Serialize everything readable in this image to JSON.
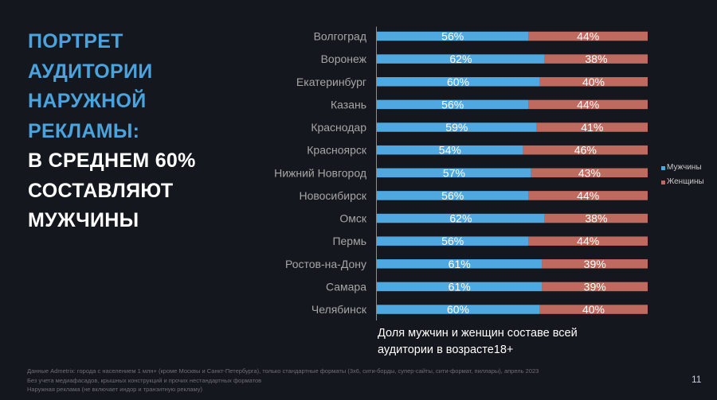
{
  "title": {
    "lines_accent": [
      "ПОРТРЕТ",
      "АУДИТОРИИ",
      "НАРУЖНОЙ",
      "РЕКЛАМЫ:"
    ],
    "lines_main": [
      "В СРЕДНЕМ 60%",
      "СОСТАВЛЯЮТ",
      "МУЖЧИНЫ"
    ]
  },
  "colors": {
    "background": "#15171e",
    "accent": "#4aa3dc",
    "men": "#4fa8e0",
    "women": "#bf6a5e"
  },
  "chart_data": {
    "type": "bar",
    "orientation": "horizontal",
    "stacked": true,
    "percent_stacked": true,
    "categories": [
      "Волгоград",
      "Воронеж",
      "Екатеринбург",
      "Казань",
      "Краснодар",
      "Красноярск",
      "Нижний Новгород",
      "Новосибирск",
      "Омск",
      "Пермь",
      "Ростов-на-Дону",
      "Самара",
      "Челябинск"
    ],
    "series": [
      {
        "name": "Мужчины",
        "color": "#4fa8e0",
        "values": [
          56,
          62,
          60,
          56,
          59,
          54,
          57,
          56,
          62,
          56,
          61,
          61,
          60
        ]
      },
      {
        "name": "Женщины",
        "color": "#bf6a5e",
        "values": [
          44,
          38,
          40,
          44,
          41,
          46,
          43,
          44,
          38,
          44,
          39,
          39,
          40
        ]
      }
    ],
    "data_label_suffix": "%",
    "xlim": [
      0,
      100
    ],
    "grid": false,
    "legend_position": "right",
    "title": "",
    "xlabel": "Доля мужчин и женщин составе всей аудитории в возрасте18+",
    "ylabel": ""
  },
  "caption": [
    "Доля мужчин и женщин составе всей",
    "аудитории в возрасте18+"
  ],
  "footnotes": [
    "Данные Admetrix: города с населением 1 млн+ (кроме Москвы и Санкт-Петербурга), только стандартные форматы (3х6, сити-борды, супер-сайты, сити-формат, пиллары), апрель 2023",
    "Без учета медиафасадов, крышных конструкций и прочих нестандартных форматов",
    "Наружная реклама (не включает индор и транзитную рекламу)"
  ],
  "page_number": "11"
}
